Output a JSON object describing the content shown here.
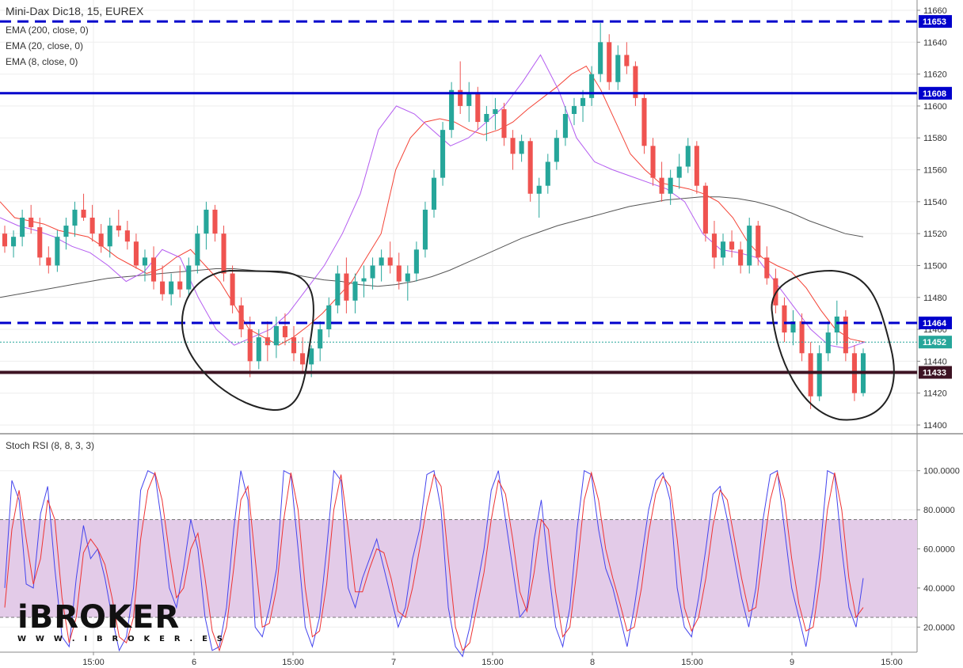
{
  "title": "Mini-Dax Dic18, 15, EUREX",
  "indicators": [
    "EMA (200, close, 0)",
    "EMA (20, close, 0)",
    "EMA (8, close, 0)"
  ],
  "lower_panel_title": "Stoch RSI (8, 8, 3, 3)",
  "logo": {
    "name": "iBROKER",
    "url": "W W W . I B R O K E R . E S"
  },
  "colors": {
    "bull": "#26a69a",
    "bear": "#ef5350",
    "ema200": "#555555",
    "ema20": "#f44336",
    "ema8": "#b45cf0",
    "hline_blue": "#0000cc",
    "hline_dark": "#3d1323",
    "current_price": "#26a69a",
    "stoch_k": "#4444ee",
    "stoch_d": "#ee3333",
    "stoch_band": "#e3cbe8"
  },
  "chart_data": [
    {
      "type": "candlestick",
      "title": "Mini-Dax Dic18, 15, EUREX",
      "ylim": [
        11400,
        11660
      ],
      "y_ticks": [
        11400,
        11420,
        11440,
        11460,
        11480,
        11500,
        11520,
        11540,
        11560,
        11580,
        11600,
        11620,
        11640,
        11660
      ],
      "x_tick_labels": [
        "15:00",
        "6",
        "15:00",
        "7",
        "15:00",
        "8",
        "15:00",
        "9",
        "15:00"
      ],
      "horizontal_lines": [
        {
          "value": 11653,
          "style": "dashed",
          "color": "#0000cc"
        },
        {
          "value": 11608,
          "style": "solid",
          "color": "#0000cc"
        },
        {
          "value": 11464,
          "style": "dashed",
          "color": "#0000cc"
        },
        {
          "value": 11433,
          "style": "solid",
          "color": "#3d1323"
        }
      ],
      "current_price": 11452,
      "series_names": [
        "EMA (200, close, 0)",
        "EMA (20, close, 0)",
        "EMA (8, close, 0)"
      ],
      "ema200": [
        11480,
        11482,
        11484,
        11486,
        11488,
        11490,
        11492,
        11493,
        11494,
        11495,
        11496,
        11497,
        11498,
        11498,
        11497,
        11496,
        11495,
        11493,
        11491,
        11490,
        11488,
        11487,
        11488,
        11490,
        11493,
        11497,
        11502,
        11507,
        11512,
        11517,
        11521,
        11525,
        11528,
        11531,
        11534,
        11537,
        11539,
        11541,
        11542,
        11543,
        11543,
        11542,
        11540,
        11537,
        11533,
        11528,
        11524,
        11520,
        11518
      ],
      "ema20": [
        11540,
        11530,
        11528,
        11526,
        11522,
        11520,
        11518,
        11512,
        11505,
        11500,
        11495,
        11498,
        11505,
        11510,
        11500,
        11490,
        11475,
        11460,
        11455,
        11450,
        11455,
        11462,
        11470,
        11480,
        11490,
        11505,
        11520,
        11560,
        11580,
        11590,
        11592,
        11590,
        11585,
        11582,
        11585,
        11590,
        11598,
        11605,
        11612,
        11620,
        11625,
        11610,
        11590,
        11570,
        11560,
        11552,
        11550,
        11548,
        11545,
        11540,
        11530,
        11515,
        11505,
        11500,
        11496,
        11486,
        11472,
        11460,
        11454,
        11452
      ],
      "ema8": [
        11530,
        11525,
        11522,
        11518,
        11512,
        11508,
        11500,
        11490,
        11496,
        11510,
        11505,
        11480,
        11460,
        11450,
        11455,
        11460,
        11470,
        11485,
        11500,
        11520,
        11545,
        11585,
        11600,
        11595,
        11585,
        11575,
        11580,
        11590,
        11600,
        11615,
        11632,
        11610,
        11580,
        11565,
        11560,
        11556,
        11552,
        11548,
        11540,
        11520,
        11510,
        11508,
        11505,
        11490,
        11475,
        11460,
        11450,
        11448,
        11452
      ],
      "candles": [
        [
          11520,
          11525,
          11508,
          11512
        ],
        [
          11512,
          11522,
          11505,
          11518
        ],
        [
          11518,
          11535,
          11512,
          11530
        ],
        [
          11530,
          11538,
          11520,
          11524
        ],
        [
          11524,
          11530,
          11500,
          11505
        ],
        [
          11505,
          11512,
          11495,
          11500
        ],
        [
          11500,
          11522,
          11496,
          11518
        ],
        [
          11518,
          11530,
          11510,
          11525
        ],
        [
          11525,
          11540,
          11518,
          11535
        ],
        [
          11535,
          11545,
          11528,
          11530
        ],
        [
          11530,
          11538,
          11515,
          11520
        ],
        [
          11520,
          11526,
          11508,
          11512
        ],
        [
          11512,
          11530,
          11505,
          11525
        ],
        [
          11525,
          11535,
          11518,
          11522
        ],
        [
          11522,
          11528,
          11510,
          11515
        ],
        [
          11515,
          11520,
          11498,
          11500
        ],
        [
          11500,
          11510,
          11490,
          11505
        ],
        [
          11505,
          11512,
          11485,
          11490
        ],
        [
          11490,
          11500,
          11478,
          11482
        ],
        [
          11482,
          11495,
          11475,
          11490
        ],
        [
          11490,
          11500,
          11480,
          11485
        ],
        [
          11485,
          11505,
          11480,
          11500
        ],
        [
          11500,
          11525,
          11495,
          11520
        ],
        [
          11520,
          11540,
          11510,
          11535
        ],
        [
          11535,
          11538,
          11515,
          11520
        ],
        [
          11520,
          11525,
          11490,
          11495
        ],
        [
          11495,
          11500,
          11470,
          11475
        ],
        [
          11475,
          11480,
          11455,
          11460
        ],
        [
          11460,
          11468,
          11430,
          11440
        ],
        [
          11440,
          11460,
          11435,
          11455
        ],
        [
          11455,
          11465,
          11440,
          11450
        ],
        [
          11450,
          11468,
          11442,
          11462
        ],
        [
          11462,
          11470,
          11450,
          11455
        ],
        [
          11455,
          11462,
          11440,
          11445
        ],
        [
          11445,
          11455,
          11432,
          11438
        ],
        [
          11438,
          11450,
          11430,
          11448
        ],
        [
          11448,
          11465,
          11440,
          11460
        ],
        [
          11460,
          11480,
          11455,
          11475
        ],
        [
          11475,
          11500,
          11470,
          11495
        ],
        [
          11495,
          11505,
          11470,
          11478
        ],
        [
          11478,
          11495,
          11470,
          11490
        ],
        [
          11490,
          11500,
          11480,
          11492
        ],
        [
          11492,
          11505,
          11485,
          11500
        ],
        [
          11500,
          11510,
          11490,
          11505
        ],
        [
          11505,
          11515,
          11495,
          11500
        ],
        [
          11500,
          11508,
          11485,
          11490
        ],
        [
          11490,
          11500,
          11478,
          11495
        ],
        [
          11495,
          11515,
          11490,
          11510
        ],
        [
          11510,
          11540,
          11505,
          11535
        ],
        [
          11535,
          11560,
          11530,
          11555
        ],
        [
          11555,
          11590,
          11550,
          11585
        ],
        [
          11585,
          11615,
          11580,
          11610
        ],
        [
          11610,
          11628,
          11595,
          11600
        ],
        [
          11600,
          11615,
          11590,
          11608
        ],
        [
          11608,
          11612,
          11585,
          11590
        ],
        [
          11590,
          11600,
          11578,
          11595
        ],
        [
          11595,
          11605,
          11585,
          11598
        ],
        [
          11598,
          11602,
          11575,
          11580
        ],
        [
          11580,
          11585,
          11560,
          11570
        ],
        [
          11570,
          11582,
          11565,
          11578
        ],
        [
          11578,
          11580,
          11540,
          11545
        ],
        [
          11545,
          11555,
          11530,
          11550
        ],
        [
          11550,
          11570,
          11545,
          11565
        ],
        [
          11565,
          11585,
          11560,
          11580
        ],
        [
          11580,
          11600,
          11575,
          11595
        ],
        [
          11595,
          11605,
          11588,
          11600
        ],
        [
          11600,
          11610,
          11590,
          11605
        ],
        [
          11605,
          11625,
          11600,
          11620
        ],
        [
          11620,
          11652,
          11615,
          11640
        ],
        [
          11640,
          11645,
          11610,
          11615
        ],
        [
          11615,
          11638,
          11610,
          11632
        ],
        [
          11632,
          11640,
          11620,
          11625
        ],
        [
          11625,
          11628,
          11600,
          11605
        ],
        [
          11605,
          11608,
          11570,
          11575
        ],
        [
          11575,
          11580,
          11550,
          11555
        ],
        [
          11555,
          11565,
          11540,
          11545
        ],
        [
          11545,
          11560,
          11538,
          11555
        ],
        [
          11555,
          11570,
          11548,
          11562
        ],
        [
          11562,
          11580,
          11558,
          11575
        ],
        [
          11575,
          11578,
          11545,
          11550
        ],
        [
          11550,
          11552,
          11515,
          11520
        ],
        [
          11520,
          11528,
          11498,
          11505
        ],
        [
          11505,
          11520,
          11500,
          11515
        ],
        [
          11515,
          11522,
          11505,
          11510
        ],
        [
          11510,
          11515,
          11495,
          11500
        ],
        [
          11500,
          11530,
          11495,
          11525
        ],
        [
          11525,
          11528,
          11500,
          11505
        ],
        [
          11505,
          11512,
          11488,
          11492
        ],
        [
          11492,
          11498,
          11470,
          11475
        ],
        [
          11475,
          11480,
          11452,
          11458
        ],
        [
          11458,
          11472,
          11450,
          11465
        ],
        [
          11465,
          11470,
          11440,
          11445
        ],
        [
          11445,
          11452,
          11410,
          11418
        ],
        [
          11418,
          11450,
          11415,
          11445
        ],
        [
          11445,
          11465,
          11440,
          11458
        ],
        [
          11458,
          11478,
          11450,
          11468
        ],
        [
          11468,
          11472,
          11440,
          11445
        ],
        [
          11445,
          11450,
          11415,
          11420
        ],
        [
          11420,
          11448,
          11418,
          11445
        ]
      ]
    },
    {
      "type": "line",
      "title": "Stoch RSI (8, 8, 3, 3)",
      "ylim": [
        8,
        112
      ],
      "y_ticks": [
        20,
        40,
        60,
        80,
        100
      ],
      "y_tick_labels": [
        "20.0000",
        "40.0000",
        "60.0000",
        "80.0000",
        "100.0000"
      ],
      "band": [
        25,
        75
      ],
      "series": [
        {
          "key": "k",
          "values": [
            40,
            95,
            85,
            42,
            40,
            78,
            92,
            50,
            15,
            10,
            45,
            72,
            55,
            60,
            45,
            25,
            8,
            15,
            40,
            90,
            100,
            98,
            72,
            40,
            30,
            50,
            75,
            60,
            25,
            8,
            10,
            30,
            70,
            100,
            85,
            20,
            15,
            30,
            50,
            100,
            98,
            60,
            20,
            10,
            25,
            60,
            100,
            95,
            40,
            30,
            45,
            55,
            65,
            50,
            35,
            20,
            30,
            55,
            70,
            98,
            100,
            80,
            30,
            10,
            5,
            20,
            40,
            60,
            90,
            100,
            75,
            50,
            25,
            30,
            65,
            85,
            50,
            20,
            10,
            30,
            70,
            100,
            98,
            70,
            50,
            40,
            25,
            10,
            30,
            55,
            80,
            95,
            99,
            85,
            40,
            20,
            15,
            35,
            60,
            88,
            92,
            75,
            55,
            35,
            20,
            40,
            75,
            98,
            100,
            70,
            40,
            25,
            10,
            30,
            60,
            100,
            98,
            60,
            30,
            20,
            45
          ]
        },
        {
          "key": "d",
          "values": [
            30,
            70,
            90,
            65,
            42,
            55,
            85,
            75,
            35,
            12,
            25,
            58,
            65,
            60,
            52,
            35,
            15,
            12,
            25,
            65,
            90,
            99,
            85,
            58,
            35,
            40,
            60,
            68,
            45,
            18,
            8,
            20,
            50,
            85,
            92,
            55,
            20,
            22,
            40,
            75,
            99,
            80,
            40,
            15,
            18,
            42,
            80,
            98,
            70,
            38,
            38,
            50,
            60,
            58,
            45,
            28,
            25,
            40,
            60,
            82,
            98,
            92,
            55,
            20,
            8,
            12,
            30,
            48,
            75,
            95,
            88,
            65,
            38,
            28,
            48,
            75,
            70,
            38,
            15,
            20,
            50,
            85,
            99,
            85,
            60,
            45,
            32,
            18,
            20,
            40,
            68,
            88,
            97,
            92,
            65,
            30,
            18,
            25,
            45,
            72,
            90,
            85,
            65,
            45,
            28,
            30,
            58,
            85,
            99,
            85,
            55,
            32,
            18,
            20,
            45,
            80,
            99,
            80,
            45,
            25,
            30
          ]
        }
      ]
    }
  ]
}
